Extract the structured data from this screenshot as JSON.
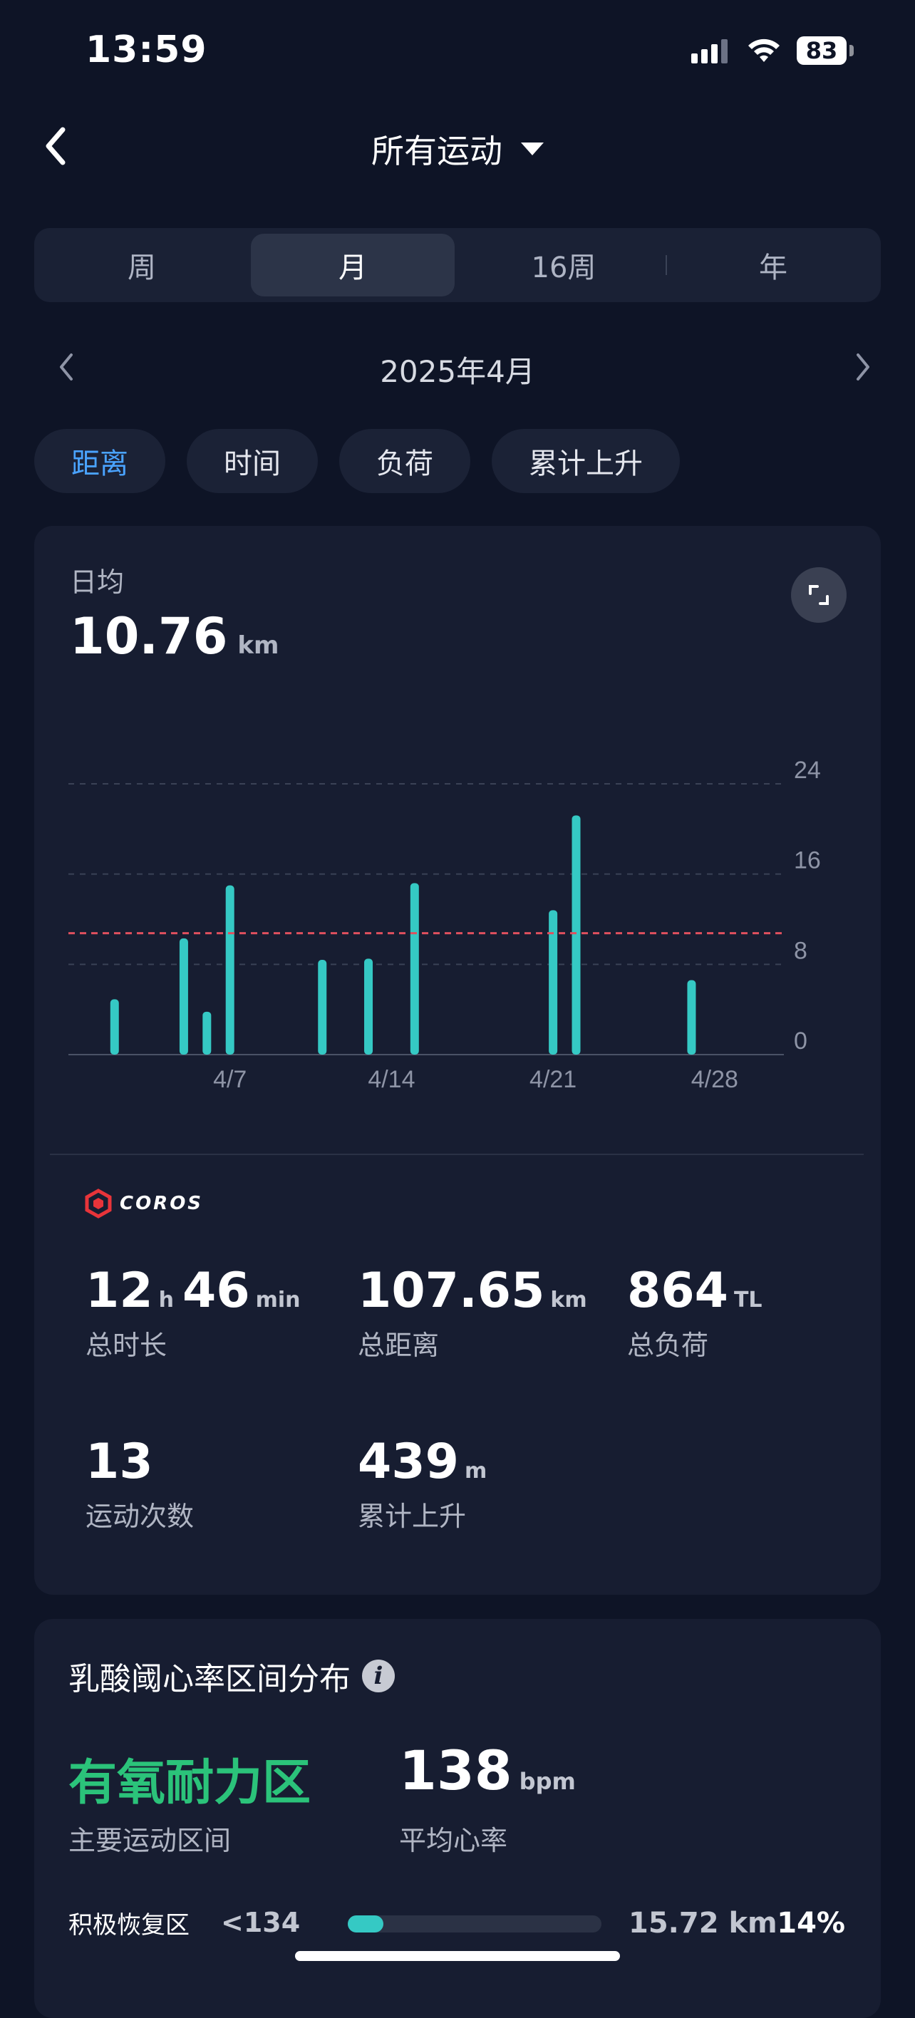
{
  "status_bar": {
    "time": "13:59",
    "battery": "83"
  },
  "header": {
    "title": "所有运动"
  },
  "period_tabs": [
    {
      "label": "周",
      "active": false
    },
    {
      "label": "月",
      "active": true
    },
    {
      "label": "16周",
      "active": false
    },
    {
      "label": "年",
      "active": false
    }
  ],
  "date_nav": {
    "label": "2025年4月"
  },
  "metric_chips": [
    {
      "label": "距离",
      "active": true
    },
    {
      "label": "时间",
      "active": false
    },
    {
      "label": "负荷",
      "active": false
    },
    {
      "label": "累计上升",
      "active": false
    }
  ],
  "summary": {
    "avg_label": "日均",
    "avg_value": "10.76",
    "avg_unit": "km"
  },
  "chart_data": {
    "type": "bar",
    "x": [
      "4/1",
      "4/2",
      "4/3",
      "4/4",
      "4/5",
      "4/6",
      "4/7",
      "4/8",
      "4/9",
      "4/10",
      "4/11",
      "4/12",
      "4/13",
      "4/14",
      "4/15",
      "4/16",
      "4/17",
      "4/18",
      "4/19",
      "4/20",
      "4/21",
      "4/22",
      "4/23",
      "4/24",
      "4/25",
      "4/26",
      "4/27",
      "4/28",
      "4/29",
      "4/30"
    ],
    "values": [
      0,
      4.9,
      0,
      0,
      10.3,
      3.8,
      15.0,
      0,
      0,
      0,
      8.4,
      0,
      8.5,
      0,
      15.2,
      0,
      0,
      0,
      0,
      0,
      12.8,
      21.2,
      0,
      0,
      0,
      0,
      6.6,
      0,
      0,
      0
    ],
    "x_ticks": [
      "4/7",
      "4/14",
      "4/21",
      "4/28"
    ],
    "y_ticks": [
      "0",
      "8",
      "16",
      "24"
    ],
    "ylim": [
      0,
      24
    ],
    "average": 10.76,
    "colors": {
      "bar": "#35c9c4",
      "average_line": "#e0505e",
      "grid": "#3a4256"
    }
  },
  "brand": {
    "name": "COROS"
  },
  "stats": [
    {
      "parts": [
        {
          "v": "12",
          "u": "h"
        },
        {
          "v": "46",
          "u": "min"
        }
      ],
      "label": "总时长"
    },
    {
      "parts": [
        {
          "v": "107.65",
          "u": "km"
        }
      ],
      "label": "总距离"
    },
    {
      "parts": [
        {
          "v": "864",
          "u": "TL"
        }
      ],
      "label": "总负荷"
    },
    {
      "parts": [
        {
          "v": "13",
          "u": ""
        }
      ],
      "label": "运动次数"
    },
    {
      "parts": [
        {
          "v": "439",
          "u": "m"
        }
      ],
      "label": "累计上升"
    }
  ],
  "lactate": {
    "title": "乳酸阈心率区间分布",
    "zone_name": "有氧耐力区",
    "zone_sub": "主要运动区间",
    "hr_value": "138",
    "hr_unit": "bpm",
    "hr_sub": "平均心率",
    "rows": [
      {
        "label": "积极恢复区",
        "range": "<134",
        "fill": 0.14,
        "distance": "15.72 km",
        "percent": "14%"
      }
    ]
  }
}
